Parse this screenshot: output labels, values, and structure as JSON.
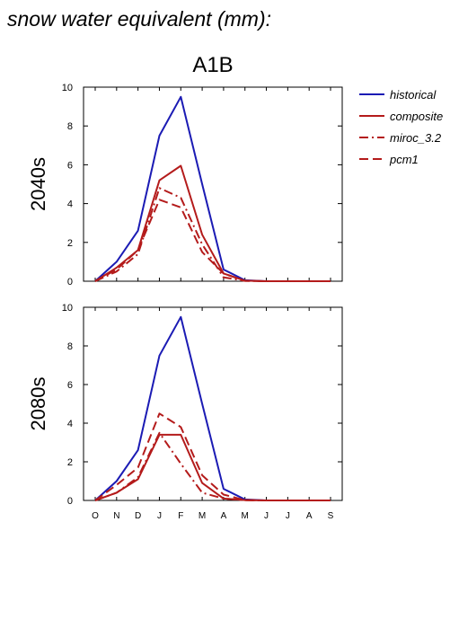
{
  "title": "snow water equivalent (mm):",
  "chart_data": {
    "type": "line",
    "scenario": "A1B",
    "months": [
      "O",
      "N",
      "D",
      "J",
      "F",
      "M",
      "A",
      "M",
      "J",
      "J",
      "A",
      "S"
    ],
    "ylim": [
      0,
      10
    ],
    "yticks": [
      "0",
      "2",
      "4",
      "6",
      "8",
      "10"
    ],
    "legend": {
      "placement": "right",
      "entries": [
        {
          "name": "historical",
          "color": "#1b1bb4",
          "dash": ""
        },
        {
          "name": "composite",
          "color": "#b41b1b",
          "dash": ""
        },
        {
          "name": "miroc_3.2",
          "color": "#b41b1b",
          "dash": "10,4,2,4"
        },
        {
          "name": "pcm1",
          "color": "#b41b1b",
          "dash": "10,5"
        }
      ]
    },
    "panels": [
      {
        "label": "2040s",
        "series": [
          {
            "name": "historical",
            "values": [
              0,
              1.0,
              2.6,
              7.5,
              9.5,
              5.0,
              0.6,
              0.05,
              0,
              0,
              0,
              0
            ]
          },
          {
            "name": "composite",
            "values": [
              0,
              0.7,
              1.6,
              5.2,
              5.95,
              2.4,
              0.4,
              0.03,
              0,
              0,
              0,
              0
            ]
          },
          {
            "name": "miroc_3.2",
            "values": [
              0,
              0.5,
              1.4,
              4.8,
              4.3,
              1.9,
              0.2,
              0.02,
              0,
              0,
              0,
              0
            ]
          },
          {
            "name": "pcm1",
            "values": [
              0,
              0.6,
              1.6,
              4.2,
              3.8,
              1.5,
              0.4,
              0.02,
              0,
              0,
              0,
              0
            ]
          }
        ]
      },
      {
        "label": "2080s",
        "series": [
          {
            "name": "historical",
            "values": [
              0,
              1.0,
              2.6,
              7.5,
              9.5,
              5.0,
              0.6,
              0.05,
              0,
              0,
              0,
              0
            ]
          },
          {
            "name": "composite",
            "values": [
              0,
              0.4,
              1.1,
              3.4,
              3.4,
              0.9,
              0.1,
              0.02,
              0,
              0,
              0,
              0
            ]
          },
          {
            "name": "miroc_3.2",
            "values": [
              0,
              0.4,
              1.2,
              3.5,
              1.9,
              0.4,
              0.1,
              0.01,
              0,
              0,
              0,
              0
            ]
          },
          {
            "name": "pcm1",
            "values": [
              0,
              0.8,
              1.7,
              4.5,
              3.8,
              1.3,
              0.3,
              0.02,
              0,
              0,
              0,
              0
            ]
          }
        ]
      }
    ]
  }
}
